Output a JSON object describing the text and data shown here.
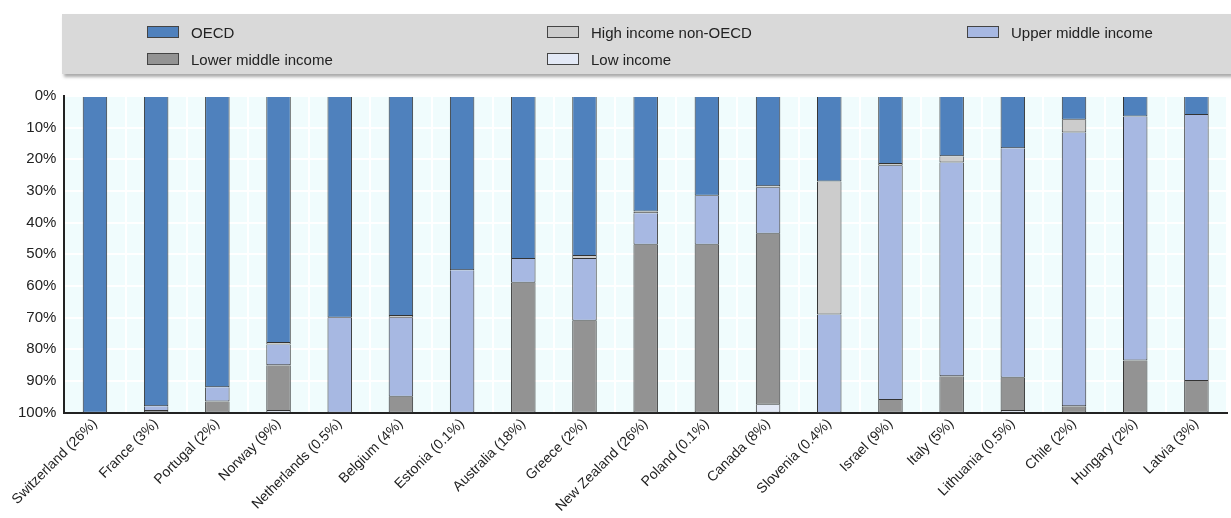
{
  "chart_data": {
    "type": "bar",
    "stacked": true,
    "categories": [
      "Switzerland (26%)",
      "France (3%)",
      "Portugal (2%)",
      "Norway (9%)",
      "Netherlands (0.5%)",
      "Belgium (4%)",
      "Estonia (0.1%)",
      "Australia (18%)",
      "Greece (2%)",
      "New Zealand (26%)",
      "Poland (0.1%)",
      "Canada (8%)",
      "Slovenia (0.4%)",
      "Israel (9%)",
      "Italy (5%)",
      "Lithuania (0.5%)",
      "Chile (2%)",
      "Hungary (2%)",
      "Latvia (3%)"
    ],
    "series": [
      {
        "name": "OECD",
        "color": "#4f81bd",
        "values": [
          100,
          98,
          92,
          78,
          70,
          69.5,
          55,
          51.5,
          50.5,
          36.5,
          31.5,
          28.5,
          27,
          21.5,
          19,
          16.5,
          7.5,
          6.5,
          6
        ]
      },
      {
        "name": "High income non-OECD",
        "color": "#cccccc",
        "values": [
          0,
          0,
          0,
          0.5,
          0,
          0.5,
          0,
          0,
          1,
          0.5,
          0,
          0.5,
          42,
          0.5,
          2,
          0,
          4,
          0,
          0
        ]
      },
      {
        "name": "Upper middle income",
        "color": "#a7b8e2",
        "values": [
          0,
          1.5,
          4.5,
          6.5,
          30,
          25,
          45,
          7.5,
          19.5,
          10,
          15.5,
          14.5,
          31,
          74,
          67.5,
          72.5,
          86.5,
          77,
          84
        ]
      },
      {
        "name": "Lower middle income",
        "color": "#939393",
        "values": [
          0,
          0.5,
          3.5,
          14.5,
          0,
          5,
          0,
          41,
          29,
          53,
          53,
          54,
          0,
          4,
          11.5,
          10.5,
          2,
          16.5,
          10
        ]
      },
      {
        "name": "Low income",
        "color": "#e3e9f6",
        "values": [
          0,
          0,
          0,
          0.5,
          0,
          0,
          0,
          0,
          0,
          0,
          0,
          2.5,
          0,
          0,
          0,
          0.5,
          0,
          0,
          0
        ]
      }
    ],
    "ylim": [
      100,
      0
    ],
    "yticks": [
      {
        "value": 0,
        "label": "0%"
      },
      {
        "value": 10,
        "label": "10%"
      },
      {
        "value": 20,
        "label": "20%"
      },
      {
        "value": 30,
        "label": "30%"
      },
      {
        "value": 40,
        "label": "40%"
      },
      {
        "value": 50,
        "label": "50%"
      },
      {
        "value": 60,
        "label": "60%"
      },
      {
        "value": 70,
        "label": "70%"
      },
      {
        "value": 80,
        "label": "80%"
      },
      {
        "value": 90,
        "label": "90%"
      },
      {
        "value": 100,
        "label": "100%"
      }
    ],
    "grid": true,
    "legend": "top"
  }
}
